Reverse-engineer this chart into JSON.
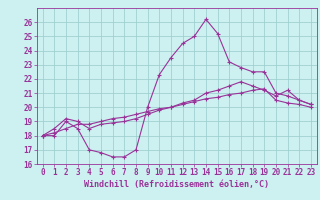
{
  "title": "",
  "xlabel": "Windchill (Refroidissement éolien,°C)",
  "ylabel": "",
  "bg_color": "#cdf0f0",
  "line_color": "#993399",
  "grid_color": "#99cccc",
  "xlim": [
    -0.5,
    23.5
  ],
  "ylim": [
    16,
    27
  ],
  "xticks": [
    0,
    1,
    2,
    3,
    4,
    5,
    6,
    7,
    8,
    9,
    10,
    11,
    12,
    13,
    14,
    15,
    16,
    17,
    18,
    19,
    20,
    21,
    22,
    23
  ],
  "yticks": [
    16,
    17,
    18,
    19,
    20,
    21,
    22,
    23,
    24,
    25,
    26
  ],
  "curve1_x": [
    0,
    1,
    2,
    3,
    4,
    5,
    6,
    7,
    8,
    9,
    10,
    11,
    12,
    13,
    14,
    15,
    16,
    17,
    18,
    19,
    20,
    21,
    22,
    23
  ],
  "curve1_y": [
    18.0,
    18.0,
    19.0,
    18.5,
    17.0,
    16.8,
    16.5,
    16.5,
    17.0,
    20.0,
    22.3,
    23.5,
    24.5,
    25.0,
    26.2,
    25.2,
    23.2,
    22.8,
    22.5,
    22.5,
    21.0,
    20.8,
    20.5,
    20.2
  ],
  "curve2_x": [
    0,
    1,
    2,
    3,
    4,
    5,
    6,
    7,
    8,
    9,
    10,
    11,
    12,
    13,
    14,
    15,
    16,
    17,
    18,
    19,
    20,
    21,
    22,
    23
  ],
  "curve2_y": [
    18.0,
    18.5,
    19.2,
    19.0,
    18.5,
    18.8,
    18.9,
    19.0,
    19.2,
    19.5,
    19.8,
    20.0,
    20.3,
    20.5,
    21.0,
    21.2,
    21.5,
    21.8,
    21.5,
    21.2,
    20.8,
    21.2,
    20.5,
    20.2
  ],
  "curve3_x": [
    0,
    1,
    2,
    3,
    4,
    5,
    6,
    7,
    8,
    9,
    10,
    11,
    12,
    13,
    14,
    15,
    16,
    17,
    18,
    19,
    20,
    21,
    22,
    23
  ],
  "curve3_y": [
    18.0,
    18.2,
    18.5,
    18.8,
    18.8,
    19.0,
    19.2,
    19.3,
    19.5,
    19.7,
    19.9,
    20.0,
    20.2,
    20.4,
    20.6,
    20.7,
    20.9,
    21.0,
    21.2,
    21.3,
    20.5,
    20.3,
    20.2,
    20.0
  ],
  "tick_fontsize": 5.5,
  "xlabel_fontsize": 6.0,
  "linewidth": 0.8,
  "markersize": 3.5
}
